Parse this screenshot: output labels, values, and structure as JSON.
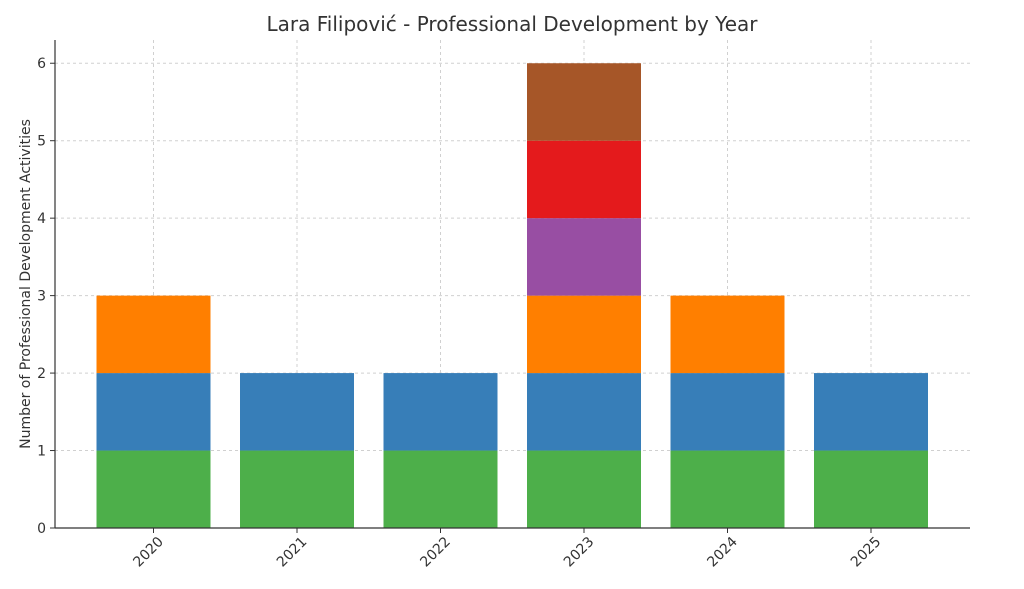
{
  "chart_data": {
    "type": "bar",
    "stacked": true,
    "title": "Lara Filipović - Professional Development by Year",
    "xlabel": "",
    "ylabel": "Number of Professional Development Activities",
    "categories": [
      "2020",
      "2021",
      "2022",
      "2023",
      "2024",
      "2025"
    ],
    "ylim": [
      0,
      6.3
    ],
    "yticks": [
      0,
      1,
      2,
      3,
      4,
      5,
      6
    ],
    "grid": true,
    "series": [
      {
        "color": "#4daf4a",
        "values": [
          1,
          1,
          1,
          1,
          1,
          1
        ]
      },
      {
        "color": "#377eb8",
        "values": [
          1,
          1,
          1,
          1,
          1,
          1
        ]
      },
      {
        "color": "#ff7f00",
        "values": [
          1,
          0,
          0,
          1,
          1,
          0
        ]
      },
      {
        "color": "#984ea3",
        "values": [
          0,
          0,
          0,
          1,
          0,
          0
        ]
      },
      {
        "color": "#e41a1c",
        "values": [
          0,
          0,
          0,
          1,
          0,
          0
        ]
      },
      {
        "color": "#a65628",
        "values": [
          0,
          0,
          0,
          1,
          0,
          0
        ]
      }
    ]
  }
}
